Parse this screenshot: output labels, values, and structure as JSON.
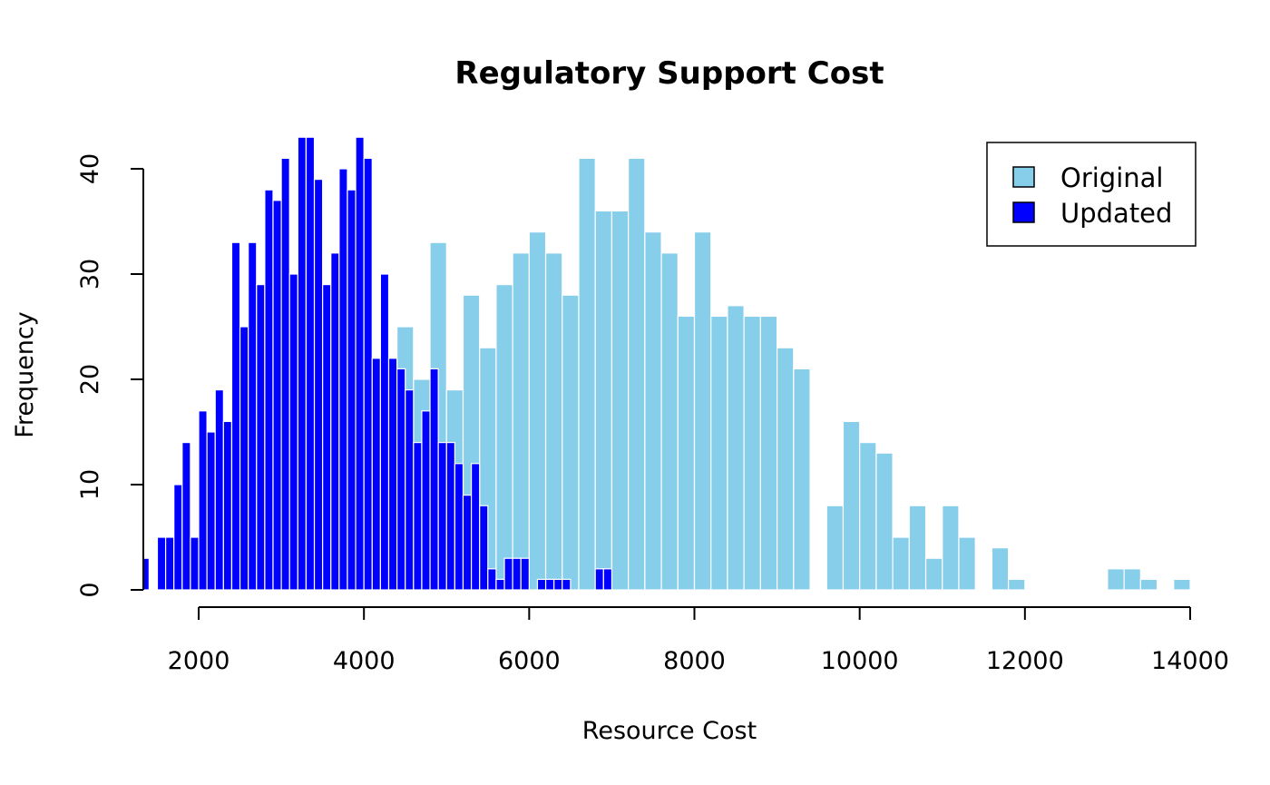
{
  "chart_data": {
    "type": "bar",
    "subtype": "overlaid-histogram",
    "title": "Regulatory Support Cost",
    "xlabel": "Resource Cost",
    "ylabel": "Frequency",
    "xlim": [
      1330,
      14000
    ],
    "ylim": [
      0,
      43
    ],
    "xticks": [
      2000,
      4000,
      6000,
      8000,
      10000,
      12000,
      14000
    ],
    "xtick_labels": [
      "2000",
      "4000",
      "6000",
      "8000",
      "10000",
      "12000",
      "14000"
    ],
    "yticks": [
      0,
      10,
      20,
      30,
      40
    ],
    "ytick_labels": [
      "0",
      "10",
      "20",
      "30",
      "40"
    ],
    "grid": false,
    "legend": {
      "position": "top-right",
      "entries": [
        {
          "label": "Original",
          "color": "#87CEEB"
        },
        {
          "label": "Updated",
          "color": "#0000FF"
        }
      ]
    },
    "bar_border_color": "#FFFFFF",
    "series": [
      {
        "name": "Original",
        "color": "#87CEEB",
        "bin_width": 200,
        "bin_start": 4400,
        "values": [
          25,
          20,
          33,
          19,
          28,
          23,
          29,
          32,
          34,
          32,
          28,
          41,
          36,
          36,
          41,
          34,
          32,
          26,
          34,
          26,
          27,
          26,
          26,
          23,
          21,
          0,
          8,
          16,
          14,
          13,
          5,
          8,
          3,
          8,
          5,
          0,
          4,
          1,
          0,
          0,
          0,
          0,
          0,
          2,
          2,
          1,
          0,
          1
        ]
      },
      {
        "name": "Updated",
        "color": "#0000FF",
        "bin_width": 100,
        "bin_start": 1300,
        "values": [
          3,
          0,
          5,
          5,
          10,
          14,
          5,
          17,
          15,
          19,
          16,
          33,
          25,
          33,
          29,
          38,
          37,
          41,
          30,
          43,
          43,
          39,
          29,
          32,
          40,
          38,
          43,
          41,
          22,
          30,
          22,
          21,
          19,
          14,
          17,
          21,
          14,
          14,
          12,
          9,
          12,
          8,
          2,
          1,
          3,
          3,
          3,
          0,
          1,
          1,
          1,
          1,
          0,
          0,
          0,
          2,
          2
        ]
      }
    ]
  }
}
